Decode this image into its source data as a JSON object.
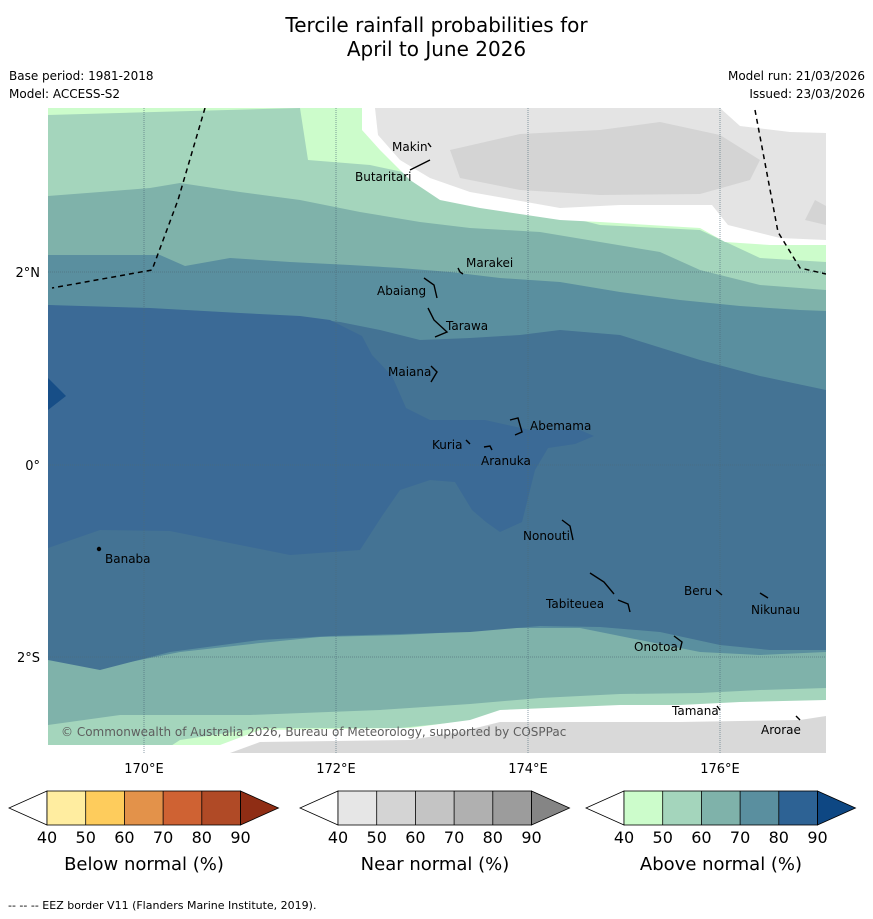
{
  "title": {
    "line1": "Tercile rainfall probabilities for",
    "line2": "April to June 2026"
  },
  "meta": {
    "base_period": "Base period: 1981-2018",
    "model": "Model: ACCESS-S2",
    "model_run": "Model run: 21/03/2026",
    "issued": "Issued: 23/03/2026"
  },
  "map": {
    "lon_labels": [
      "170°E",
      "172°E",
      "174°E",
      "176°E"
    ],
    "lat_labels": [
      "2°N",
      "0°",
      "2°S"
    ],
    "islands": [
      "Makin",
      "Butaritari",
      "Marakei",
      "Abaiang",
      "Tarawa",
      "Maiana",
      "Abemama",
      "Kuria",
      "Aranuka",
      "Nonouti",
      "Banaba",
      "Beru",
      "Nikunau",
      "Tabiteuea",
      "Onotoa",
      "Tamana",
      "Arorae"
    ],
    "copyright": "© Commonwealth of Australia 2026, Bureau of Meteorology, supported by COSPPac"
  },
  "colorbars": [
    {
      "title": "Below normal (%)",
      "ticks": [
        "40",
        "50",
        "60",
        "70",
        "80",
        "90"
      ],
      "colors": [
        "#ffeda0",
        "#fecc5c",
        "#e3924a",
        "#cf6233",
        "#b04a26",
        "#8f2d14"
      ]
    },
    {
      "title": "Near normal (%)",
      "ticks": [
        "40",
        "50",
        "60",
        "70",
        "80",
        "90"
      ],
      "colors": [
        "#e6e6e6",
        "#d4d4d4",
        "#c4c4c4",
        "#b0b0b0",
        "#9c9c9c",
        "#858585"
      ]
    },
    {
      "title": "Above normal (%)",
      "ticks": [
        "40",
        "50",
        "60",
        "70",
        "80",
        "90"
      ],
      "colors": [
        "#ccfccb",
        "#a4d5bc",
        "#7fb2aa",
        "#5a8f9f",
        "#2d6294",
        "#0e4783"
      ]
    }
  ],
  "footer": "--  --  -- EEZ border V11 (Flanders Marine Institute, 2019)."
}
